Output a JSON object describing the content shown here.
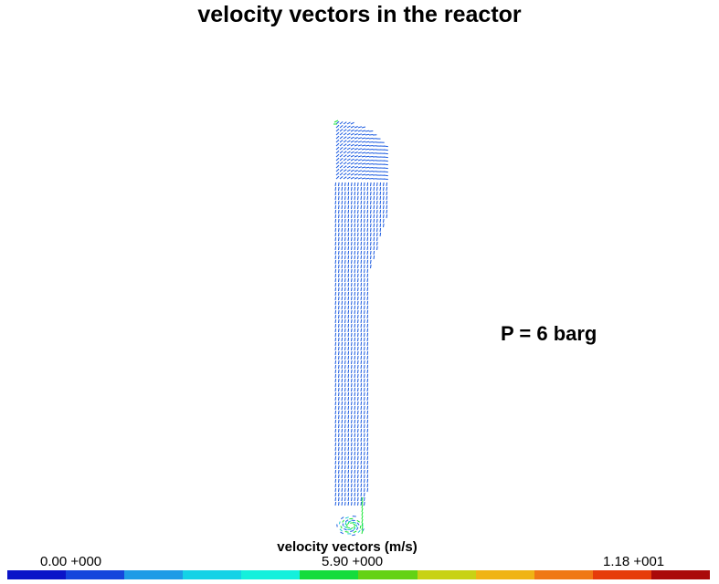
{
  "title": "velocity vectors in the reactor",
  "annotation": "P = 6 barg",
  "colorbar": {
    "title": "velocity vectors (m/s)",
    "min_label": "0.00 +000",
    "mid_label": "5.90 +000",
    "max_label": "1.18 +001",
    "min_value": 0.0,
    "max_value": 11.8,
    "unit": "m/s",
    "colors": [
      "#0a14c8",
      "#1446dc",
      "#1e9be6",
      "#14d2e6",
      "#14f0dc",
      "#14dc3c",
      "#64d214",
      "#c8d214",
      "#f0b414",
      "#f07814",
      "#e63c0a",
      "#aa0a0a"
    ]
  },
  "vector_colors": {
    "bulk": "#1a5ae0",
    "low_speed": "#1a5ae0",
    "jet": "#19e636",
    "mid": "#14c8d2"
  }
}
